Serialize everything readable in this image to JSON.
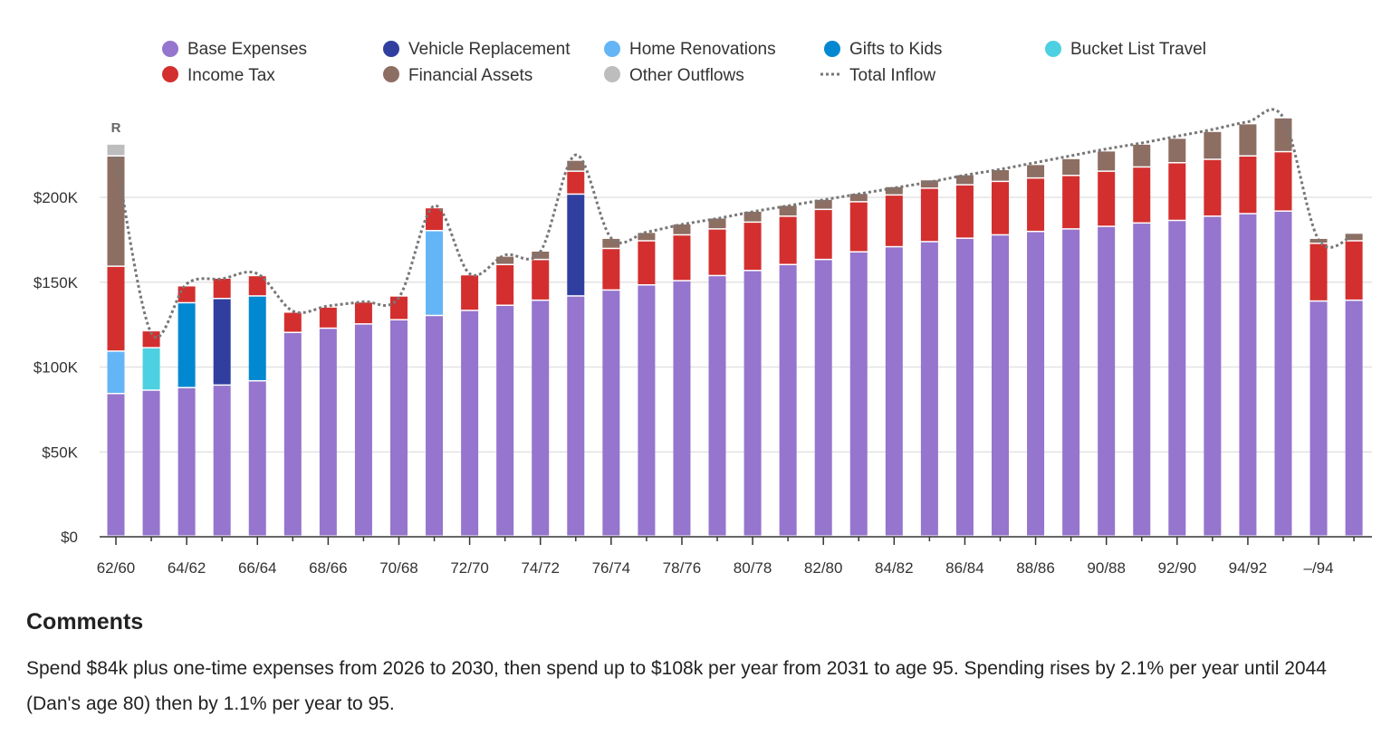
{
  "chart_data": {
    "type": "bar",
    "stacked": true,
    "legend_position": "top",
    "grid": true,
    "ylim": [
      0,
      250000
    ],
    "y_ticks": [
      {
        "value": 0,
        "label": "$0"
      },
      {
        "value": 50000,
        "label": "$50K"
      },
      {
        "value": 100000,
        "label": "$100K"
      },
      {
        "value": 150000,
        "label": "$150K"
      },
      {
        "value": 200000,
        "label": "$200K"
      }
    ],
    "x_tick_labels": [
      "62/60",
      "",
      "64/62",
      "",
      "66/64",
      "",
      "68/66",
      "",
      "70/68",
      "",
      "72/70",
      "",
      "74/72",
      "",
      "76/74",
      "",
      "78/76",
      "",
      "80/78",
      "",
      "82/80",
      "",
      "84/82",
      "",
      "86/84",
      "",
      "88/86",
      "",
      "90/88",
      "",
      "92/90",
      "",
      "94/92",
      "",
      "–/94",
      ""
    ],
    "start_marker": "R",
    "series": [
      {
        "name": "Base Expenses",
        "color": "#9575cd",
        "values": [
          84000,
          86000,
          87500,
          89000,
          91500,
          120000,
          122500,
          125000,
          127500,
          130000,
          133000,
          136000,
          139000,
          141500,
          145000,
          148000,
          150500,
          153500,
          156500,
          160000,
          163000,
          167500,
          170500,
          173500,
          175500,
          177500,
          179500,
          181000,
          182500,
          184500,
          186000,
          188500,
          190000,
          191500,
          138500,
          139000
        ]
      },
      {
        "name": "Vehicle Replacement",
        "color": "#303f9f",
        "values": [
          0,
          0,
          0,
          51000,
          0,
          0,
          0,
          0,
          0,
          0,
          0,
          0,
          0,
          60000,
          0,
          0,
          0,
          0,
          0,
          0,
          0,
          0,
          0,
          0,
          0,
          0,
          0,
          0,
          0,
          0,
          0,
          0,
          0,
          0,
          0,
          0
        ]
      },
      {
        "name": "Home Renovations",
        "color": "#64b5f6",
        "values": [
          25000,
          0,
          0,
          0,
          0,
          0,
          0,
          0,
          0,
          50000,
          0,
          0,
          0,
          0,
          0,
          0,
          0,
          0,
          0,
          0,
          0,
          0,
          0,
          0,
          0,
          0,
          0,
          0,
          0,
          0,
          0,
          0,
          0,
          0,
          0,
          0
        ]
      },
      {
        "name": "Gifts to Kids",
        "color": "#0288d1",
        "values": [
          0,
          0,
          50000,
          0,
          50000,
          0,
          0,
          0,
          0,
          0,
          0,
          0,
          0,
          0,
          0,
          0,
          0,
          0,
          0,
          0,
          0,
          0,
          0,
          0,
          0,
          0,
          0,
          0,
          0,
          0,
          0,
          0,
          0,
          0,
          0,
          0
        ]
      },
      {
        "name": "Bucket List Travel",
        "color": "#4dd0e1",
        "values": [
          0,
          25000,
          0,
          0,
          0,
          0,
          0,
          0,
          0,
          0,
          0,
          0,
          0,
          0,
          0,
          0,
          0,
          0,
          0,
          0,
          0,
          0,
          0,
          0,
          0,
          0,
          0,
          0,
          0,
          0,
          0,
          0,
          0,
          0,
          0,
          0
        ]
      },
      {
        "name": "Income Tax",
        "color": "#d32f2f",
        "values": [
          50000,
          10000,
          10000,
          12000,
          12000,
          12000,
          12500,
          13000,
          14000,
          13500,
          21000,
          24000,
          24000,
          13500,
          24500,
          26000,
          27000,
          27500,
          28500,
          28500,
          29500,
          29500,
          30500,
          31500,
          31500,
          31500,
          31500,
          31500,
          32500,
          33000,
          34000,
          33500,
          34000,
          35000,
          34000,
          35000
        ]
      },
      {
        "name": "Financial Assets",
        "color": "#8d6e63",
        "values": [
          65000,
          0,
          0,
          0,
          0,
          0,
          0,
          0,
          0,
          0,
          0,
          5000,
          5000,
          6500,
          6000,
          5000,
          6500,
          6500,
          6500,
          6500,
          6000,
          5000,
          5000,
          5000,
          6000,
          7000,
          8000,
          10000,
          12000,
          13500,
          14500,
          16500,
          19000,
          20000,
          3000,
          4500
        ]
      },
      {
        "name": "Other Outflows",
        "color": "#bdbdbd",
        "values": [
          7000,
          0,
          0,
          0,
          0,
          0,
          0,
          0,
          0,
          0,
          0,
          0,
          0,
          0,
          0,
          0,
          0,
          0,
          0,
          0,
          0,
          0,
          0,
          0,
          0,
          0,
          0,
          0,
          0,
          0,
          0,
          0,
          0,
          0,
          0,
          0
        ]
      }
    ],
    "line_series": {
      "name": "Total Inflow",
      "style": "dotted",
      "color": "#777777",
      "values": [
        224000,
        120000,
        149000,
        152000,
        155000,
        133000,
        136000,
        138500,
        141000,
        195000,
        155000,
        166000,
        168000,
        225000,
        176000,
        179500,
        184000,
        187500,
        191500,
        195000,
        198500,
        202000,
        205500,
        209000,
        213000,
        216500,
        220500,
        224500,
        228500,
        232000,
        236000,
        240000,
        244500,
        247000,
        175000,
        178000
      ]
    }
  },
  "legend": {
    "base_expenses": "Base Expenses",
    "vehicle_replacement": "Vehicle Replacement",
    "home_renovations": "Home Renovations",
    "gifts_to_kids": "Gifts to Kids",
    "bucket_list_travel": "Bucket List Travel",
    "income_tax": "Income Tax",
    "financial_assets": "Financial Assets",
    "other_outflows": "Other Outflows",
    "total_inflow": "Total Inflow"
  },
  "comments": {
    "heading": "Comments",
    "body": "Spend $84k plus one-time expenses from 2026 to 2030, then spend up to $108k per year from 2031 to age 95. Spending rises by 2.1% per year until 2044 (Dan's age 80) then by 1.1% per year to 95."
  }
}
